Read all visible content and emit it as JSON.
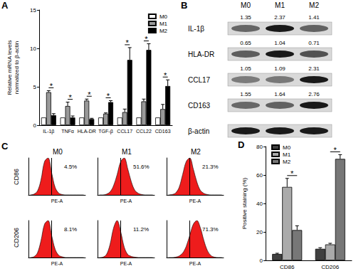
{
  "chart_data": [
    {
      "panel": "A",
      "type": "bar",
      "ylabel": "Relative mRNA levels\nnormalized to β-actin",
      "categories": [
        "IL-1β",
        "TNFα",
        "HLA-DR",
        "TGF-β",
        "CCL17",
        "CCL22",
        "CD163"
      ],
      "series": [
        {
          "name": "M0",
          "color": "#ffffff",
          "values": [
            1,
            1,
            1,
            1,
            1,
            1,
            1
          ],
          "errors": [
            null,
            null,
            null,
            null,
            null,
            null,
            null
          ]
        },
        {
          "name": "M1",
          "color": "#999999",
          "values": [
            4.3,
            2.5,
            3.2,
            1.5,
            1.7,
            3.1,
            2.1
          ],
          "errors": [
            0.2,
            0.5,
            0.2,
            0.1,
            0.4,
            0.3,
            0.6
          ]
        },
        {
          "name": "M2",
          "color": "#000000",
          "values": [
            1.3,
            1.0,
            0.8,
            3.0,
            8.5,
            9.8,
            5.1
          ],
          "errors": [
            0.2,
            0.2,
            0.1,
            0.2,
            1.6,
            0.8,
            0.8
          ]
        }
      ],
      "significance": [
        "*",
        "*",
        "*",
        "*",
        "*",
        "*",
        "*"
      ],
      "ylim": [
        0,
        15
      ],
      "yticks": [
        0,
        5,
        10,
        15
      ],
      "legend": "upper right"
    },
    {
      "panel": "B",
      "type": "blot",
      "lanes": [
        "M0",
        "M1",
        "M2"
      ],
      "rows": [
        {
          "name": "IL-1β",
          "values": [
            1.35,
            2.37,
            1.41
          ]
        },
        {
          "name": "HLA-DR",
          "values": [
            0.65,
            1.04,
            0.71
          ]
        },
        {
          "name": "CCL17",
          "values": [
            1.05,
            1.09,
            2.31
          ]
        },
        {
          "name": "CD163",
          "values": [
            1.55,
            1.64,
            2.76
          ]
        },
        {
          "name": "β-actin"
        }
      ]
    },
    {
      "panel": "C",
      "type": "histogram",
      "xlabel": "PE-A",
      "rows": [
        "CD86",
        "CD206"
      ],
      "columns": [
        "M0",
        "M1",
        "M2"
      ],
      "bins": [
        0,
        1,
        2,
        3,
        4,
        5,
        6,
        7,
        8,
        9,
        10,
        11,
        12,
        13,
        14,
        15,
        16
      ],
      "xlim": [
        0,
        16
      ],
      "ylim": [
        0,
        100
      ],
      "tick_labels": false,
      "gate": 6.5,
      "color": "#ee1c1c",
      "panels": [
        [
          {
            "counts": [
              0,
              2,
              10,
              40,
              90,
              100,
              60,
              20,
              5,
              1,
              0,
              0,
              0,
              0,
              0,
              0
            ],
            "value": 4.5,
            "value_label": "4.5%"
          },
          {
            "counts": [
              0,
              0,
              2,
              8,
              25,
              55,
              90,
              100,
              70,
              35,
              12,
              4,
              1,
              0,
              0,
              0
            ],
            "value": 51.6,
            "value_label": "51.6%"
          },
          {
            "counts": [
              0,
              1,
              5,
              20,
              55,
              90,
              100,
              70,
              35,
              12,
              4,
              1,
              0,
              0,
              0,
              0
            ],
            "value": 21.3,
            "value_label": "21.3%"
          }
        ],
        [
          {
            "counts": [
              0,
              2,
              12,
              45,
              90,
              100,
              60,
              22,
              6,
              2,
              0,
              0,
              0,
              0,
              0,
              0
            ],
            "value": 8.1,
            "value_label": "8.1%"
          },
          {
            "counts": [
              0,
              1,
              8,
              35,
              80,
              100,
              70,
              28,
              8,
              3,
              1,
              0,
              0,
              0,
              0,
              0
            ],
            "value": 11.2,
            "value_label": "11.2%"
          },
          {
            "counts": [
              0,
              0,
              1,
              4,
              12,
              30,
              60,
              90,
              100,
              80,
              45,
              18,
              5,
              1,
              0,
              0
            ],
            "value": 71.3,
            "value_label": "71.3%"
          }
        ]
      ]
    },
    {
      "panel": "D",
      "type": "bar",
      "ylabel": "Positive staining (%)",
      "categories": [
        "CD86",
        "CD206"
      ],
      "series": [
        {
          "name": "M0",
          "color": "#404040",
          "values": [
            4.5,
            8.1
          ],
          "errors": [
            0.5,
            0.8
          ]
        },
        {
          "name": "M1",
          "color": "#aaaaaa",
          "values": [
            51.6,
            11.2
          ],
          "errors": [
            6,
            0.8
          ]
        },
        {
          "name": "M2",
          "color": "#777777",
          "values": [
            21.3,
            71.3
          ],
          "errors": [
            3,
            3
          ]
        }
      ],
      "significance": [
        "*",
        "*"
      ],
      "ylim": [
        0,
        80
      ],
      "yticks": [
        0,
        20,
        40,
        60,
        80
      ],
      "legend": "upper left"
    }
  ]
}
